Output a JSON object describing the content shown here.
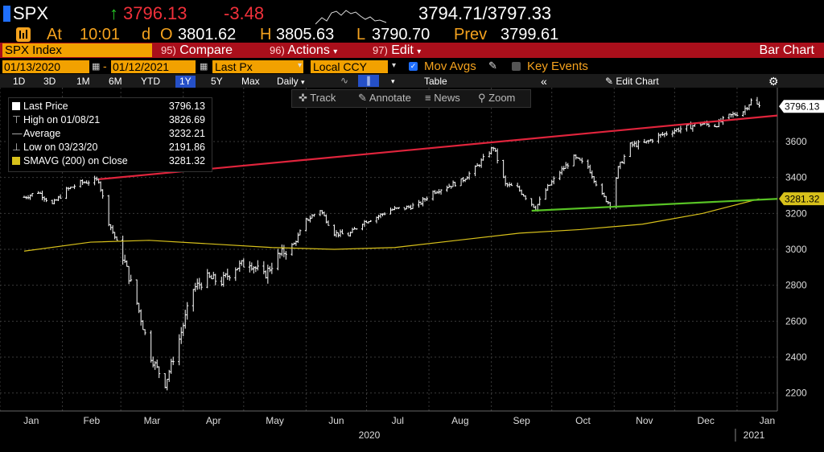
{
  "header": {
    "ticker": "SPX",
    "arrow": "↑",
    "last": "3796.13",
    "change": "-3.48",
    "bid_ask": "3794.71/3797.33"
  },
  "quote": {
    "at_label": "At",
    "time": "10:01",
    "d_label": "d",
    "o_label": "O",
    "open": "3801.62",
    "h_label": "H",
    "high": "3805.63",
    "l_label": "L",
    "low": "3790.70",
    "prev_label": "Prev",
    "prev": "3799.61"
  },
  "menu": {
    "security": "SPX Index",
    "compare_num": "95)",
    "compare": "Compare",
    "actions_num": "96)",
    "actions": "Actions",
    "edit_num": "97)",
    "edit": "Edit",
    "view_name": "Bar Chart"
  },
  "settings": {
    "start_date": "01/13/2020",
    "end_date": "01/12/2021",
    "price_field": "Last Px",
    "currency": "Local CCY",
    "mov_avgs": "Mov Avgs",
    "key_events": "Key Events"
  },
  "periods": {
    "items": [
      "1D",
      "3D",
      "1M",
      "6M",
      "YTD",
      "1Y",
      "5Y",
      "Max"
    ],
    "active": "1Y",
    "frequency": "Daily",
    "table": "Table",
    "edit_chart": "Edit Chart"
  },
  "chart_toolbar": {
    "track": "Track",
    "annotate": "Annotate",
    "news": "News",
    "zoom": "Zoom"
  },
  "legend": {
    "last_price_label": "Last Price",
    "last_price": "3796.13",
    "high_label": "High on 01/08/21",
    "high": "3826.69",
    "average_label": "Average",
    "average": "3232.21",
    "low_label": "Low on 03/23/20",
    "low": "2191.86",
    "sma_label": "SMAVG (200)  on Close",
    "sma": "3281.32"
  },
  "colors": {
    "price": "#ffffff",
    "sma": "#d8c11b",
    "resistance": "#e0243c",
    "support": "#58c325",
    "amber": "#f4a21e",
    "menu_red": "#aa0f1b",
    "grid": "#3a3a3a"
  },
  "chart_data": {
    "type": "line",
    "title": "SPX Index",
    "ylim": [
      2100,
      3900
    ],
    "ytick_labels": [
      "2200",
      "2400",
      "2600",
      "2800",
      "3000",
      "3200",
      "3400",
      "3600"
    ],
    "xtick_labels": [
      "Jan",
      "Feb",
      "Mar",
      "Apr",
      "May",
      "Jun",
      "Jul",
      "Aug",
      "Sep",
      "Oct",
      "Nov",
      "Dec",
      "Jan"
    ],
    "year_labels": [
      "2020",
      "2021"
    ],
    "series": [
      {
        "style": "bar",
        "x": [
          "2020-01-13",
          "2020-01-20",
          "2020-01-27",
          "2020-02-03",
          "2020-02-10",
          "2020-02-19",
          "2020-02-24",
          "2020-03-02",
          "2020-03-09",
          "2020-03-16",
          "2020-03-23",
          "2020-03-30",
          "2020-04-06",
          "2020-04-13",
          "2020-04-20",
          "2020-04-27",
          "2020-05-04",
          "2020-05-11",
          "2020-05-18",
          "2020-05-26",
          "2020-06-01",
          "2020-06-08",
          "2020-06-15",
          "2020-06-22",
          "2020-06-29",
          "2020-07-06",
          "2020-07-13",
          "2020-07-20",
          "2020-07-27",
          "2020-08-03",
          "2020-08-10",
          "2020-08-17",
          "2020-08-24",
          "2020-09-02",
          "2020-09-08",
          "2020-09-14",
          "2020-09-23",
          "2020-09-28",
          "2020-10-05",
          "2020-10-12",
          "2020-10-19",
          "2020-10-26",
          "2020-10-30",
          "2020-11-03",
          "2020-11-09",
          "2020-11-16",
          "2020-11-23",
          "2020-11-30",
          "2020-12-07",
          "2020-12-14",
          "2020-12-21",
          "2020-12-28",
          "2021-01-04",
          "2021-01-08",
          "2021-01-12"
        ],
        "y": [
          3290,
          3320,
          3250,
          3330,
          3370,
          3385,
          3150,
          2960,
          2700,
          2400,
          2250,
          2500,
          2780,
          2840,
          2820,
          2900,
          2930,
          2850,
          2960,
          3030,
          3160,
          3220,
          3090,
          3080,
          3150,
          3180,
          3220,
          3230,
          3250,
          3320,
          3350,
          3380,
          3450,
          3570,
          3360,
          3340,
          3230,
          3330,
          3430,
          3510,
          3460,
          3300,
          3250,
          3450,
          3580,
          3590,
          3630,
          3660,
          3680,
          3700,
          3690,
          3740,
          3770,
          3826,
          3796
        ]
      },
      {
        "name": "SMAVG (200)  on Close",
        "style": "line",
        "x": [
          "2020-01-13",
          "2020-02-15",
          "2020-03-15",
          "2020-04-15",
          "2020-05-15",
          "2020-06-15",
          "2020-07-15",
          "2020-08-15",
          "2020-09-15",
          "2020-10-15",
          "2020-11-15",
          "2020-12-15",
          "2021-01-12"
        ],
        "y": [
          2990,
          3040,
          3050,
          3030,
          3010,
          3000,
          3010,
          3050,
          3090,
          3110,
          3140,
          3200,
          3281
        ]
      },
      {
        "style": "line",
        "x": [
          "2020-02-19",
          "2021-01-12"
        ],
        "y": [
          3390,
          3745
        ]
      },
      {
        "style": "line",
        "x": [
          "2020-09-21",
          "2021-01-12"
        ],
        "y": [
          3215,
          3281
        ]
      }
    ],
    "price_tags": [
      "3796.13",
      "3281.32"
    ],
    "grid": true
  }
}
